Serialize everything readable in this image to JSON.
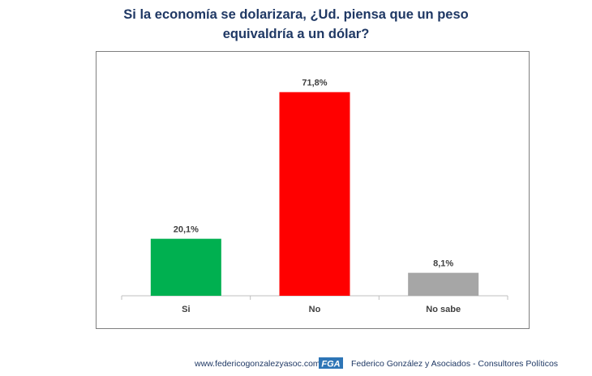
{
  "title_lines": [
    "Si la economía se dolarizara, ¿Ud. piensa que un peso",
    "equivaldría a un dólar?"
  ],
  "chart_data": {
    "type": "bar",
    "title": "Si la economía se dolarizara, ¿Ud. piensa que un peso equivaldría a un dólar?",
    "categories": [
      "Si",
      "No",
      "No sabe"
    ],
    "values": [
      20.1,
      71.8,
      8.1
    ],
    "value_labels": [
      "20,1%",
      "71,8%",
      "8,1%"
    ],
    "colors": [
      "#00b050",
      "#ff0000",
      "#a6a6a6"
    ],
    "ylim": [
      0,
      100
    ],
    "grid": false,
    "legend": "none"
  },
  "footer": {
    "url": "www.federicogonzalezyasoc.com",
    "logo_text": "FGA",
    "company": "Federico González y Asociados - Consultores Políticos"
  },
  "colors": {
    "title": "#1f3864",
    "logo": "#2e75b6"
  }
}
